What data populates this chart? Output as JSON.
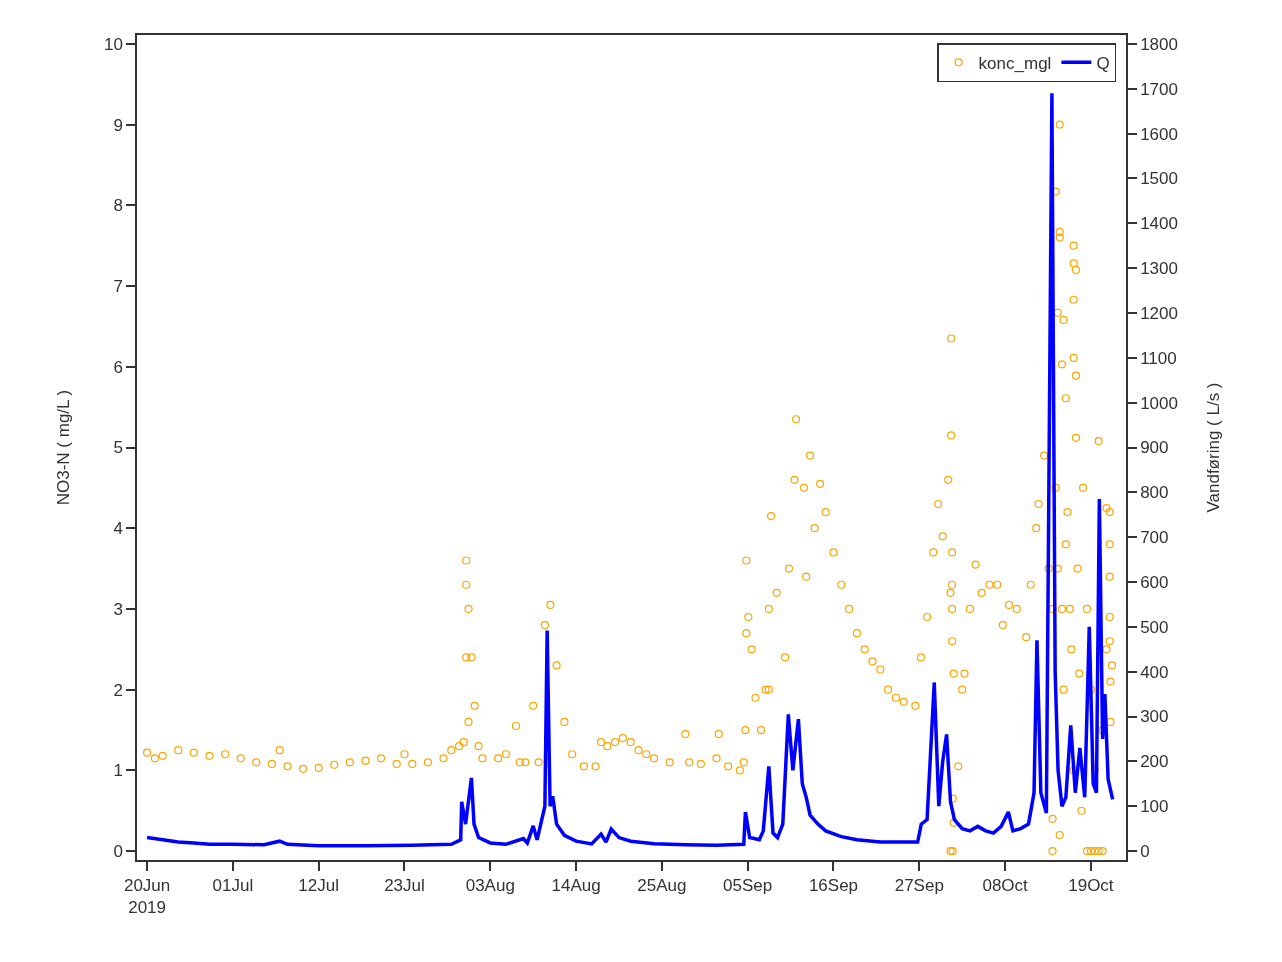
{
  "chart_data": {
    "type": "scatter",
    "xlabel": null,
    "ylabel": "NO3-N ( mg/L )",
    "y2label": "Vandføring ( L/s )",
    "xlim": [
      "2019-06-18T17:00",
      "2019-10-23T12:00"
    ],
    "xticks": [
      {
        "value": "2019-06-20",
        "label": "20Jun\n2019"
      },
      {
        "value": "2019-07-01",
        "label": "01Jul"
      },
      {
        "value": "2019-07-12",
        "label": "12Jul"
      },
      {
        "value": "2019-07-23",
        "label": "23Jul"
      },
      {
        "value": "2019-08-03",
        "label": "03Aug"
      },
      {
        "value": "2019-08-14",
        "label": "14Aug"
      },
      {
        "value": "2019-08-25",
        "label": "25Aug"
      },
      {
        "value": "2019-09-05",
        "label": "05Sep"
      },
      {
        "value": "2019-09-16",
        "label": "16Sep"
      },
      {
        "value": "2019-09-27",
        "label": "27Sep"
      },
      {
        "value": "2019-10-08",
        "label": "08Oct"
      },
      {
        "value": "2019-10-19",
        "label": "19Oct"
      }
    ],
    "ylim": [
      -0.11,
      10.11
    ],
    "yticks": [
      0,
      1,
      2,
      3,
      4,
      5,
      6,
      7,
      8,
      9,
      10
    ],
    "y2lim": [
      -20,
      1820
    ],
    "y2ticks": [
      0,
      100,
      200,
      300,
      400,
      500,
      600,
      700,
      800,
      900,
      1000,
      1100,
      1200,
      1300,
      1400,
      1500,
      1600,
      1700,
      1800
    ],
    "legend": "top right",
    "series": [
      {
        "name": "konc_mgl",
        "marker": "circle",
        "color": "#ffa500",
        "x": [
          "2019-06-20T00:00",
          "2019-06-21T00:00",
          "2019-06-22T00:00",
          "2019-06-24T00:00",
          "2019-06-26T00:00",
          "2019-06-28T00:00",
          "2019-06-30T00:00",
          "2019-07-02T00:00",
          "2019-07-04T00:00",
          "2019-07-06T00:00",
          "2019-07-07T00:00",
          "2019-07-08T00:00",
          "2019-07-10T00:00",
          "2019-07-12T00:00",
          "2019-07-14T00:00",
          "2019-07-16T00:00",
          "2019-07-18T00:00",
          "2019-07-20T00:00",
          "2019-07-22T00:00",
          "2019-07-23T00:00",
          "2019-07-24T00:00",
          "2019-07-26T00:00",
          "2019-07-28T00:00",
          "2019-07-29T00:00",
          "2019-07-30T00:00",
          "2019-07-30T14:00",
          "2019-07-30T22:00",
          "2019-07-30T22:00",
          "2019-07-30T22:00",
          "2019-07-31T05:00",
          "2019-07-31T05:00",
          "2019-07-31T14:00",
          "2019-08-01T00:00",
          "2019-08-01T12:00",
          "2019-08-02T00:00",
          "2019-08-04T00:00",
          "2019-08-05T00:00",
          "2019-08-06T07:00",
          "2019-08-06T19:00",
          "2019-08-07T12:00",
          "2019-08-08T12:00",
          "2019-08-09T05:00",
          "2019-08-10T00:00",
          "2019-08-10T17:00",
          "2019-08-11T12:00",
          "2019-08-12T12:00",
          "2019-08-13T12:00",
          "2019-08-15T00:00",
          "2019-08-16T12:00",
          "2019-08-17T05:00",
          "2019-08-18T00:00",
          "2019-08-19T00:00",
          "2019-08-20T00:00",
          "2019-08-21T00:00",
          "2019-08-22T00:00",
          "2019-08-23T00:00",
          "2019-08-24T00:00",
          "2019-08-26T00:00",
          "2019-08-28T00:00",
          "2019-08-28T12:00",
          "2019-08-30T00:00",
          "2019-09-01T00:00",
          "2019-09-01T07:00",
          "2019-09-02T12:00",
          "2019-09-04T00:00",
          "2019-09-04T12:00",
          "2019-09-04T17:00",
          "2019-09-04T20:00",
          "2019-09-04T20:00",
          "2019-09-05T02:00",
          "2019-09-05T12:00",
          "2019-09-06T00:00",
          "2019-09-06T17:00",
          "2019-09-07T07:00",
          "2019-09-07T17:00",
          "2019-09-07T17:00",
          "2019-09-08T00:00",
          "2019-09-08T17:00",
          "2019-09-09T19:00",
          "2019-09-10T07:00",
          "2019-09-11T00:00",
          "2019-09-11T05:00",
          "2019-09-12T05:00",
          "2019-09-12T12:00",
          "2019-09-13T00:00",
          "2019-09-13T14:00",
          "2019-09-14T07:00",
          "2019-09-15T00:00",
          "2019-09-16T00:00",
          "2019-09-17T00:00",
          "2019-09-18T00:00",
          "2019-09-19T00:00",
          "2019-09-20T00:00",
          "2019-09-21T00:00",
          "2019-09-22T00:00",
          "2019-09-23T00:00",
          "2019-09-24T00:00",
          "2019-09-25T00:00",
          "2019-09-26T12:00",
          "2019-09-27T05:00",
          "2019-09-28T00:00",
          "2019-09-28T19:00",
          "2019-09-29T10:00",
          "2019-09-30T00:00",
          "2019-09-30T17:00",
          "2019-10-01T00:00",
          "2019-10-01T02:00",
          "2019-10-01T02:00",
          "2019-10-01T00:00",
          "2019-10-01T05:00",
          "2019-10-01T05:00",
          "2019-10-01T05:00",
          "2019-10-01T05:00",
          "2019-10-01T07:00",
          "2019-10-01T07:00",
          "2019-10-01T10:00",
          "2019-10-01T10:00",
          "2019-10-02T00:00",
          "2019-10-02T12:00",
          "2019-10-02T19:00",
          "2019-10-03T12:00",
          "2019-10-04T05:00",
          "2019-10-05T00:00",
          "2019-10-06T00:00",
          "2019-10-07T00:00",
          "2019-10-07T17:00",
          "2019-10-08T12:00",
          "2019-10-09T12:00",
          "2019-10-10T17:00",
          "2019-10-11T07:00",
          "2019-10-12T00:00",
          "2019-10-12T07:00",
          "2019-10-13T00:00",
          "2019-10-13T14:00",
          "2019-10-14T02:00",
          "2019-10-14T02:00",
          "2019-10-14T02:00",
          "2019-10-14T12:00",
          "2019-10-14T12:00",
          "2019-10-14T18:00",
          "2019-10-14T18:00",
          "2019-10-15T00:00",
          "2019-10-15T00:00",
          "2019-10-15T00:00",
          "2019-10-15T00:00",
          "2019-10-15T07:00",
          "2019-10-15T07:00",
          "2019-10-15T12:00",
          "2019-10-15T12:00",
          "2019-10-15T19:00",
          "2019-10-15T19:00",
          "2019-10-16T00:00",
          "2019-10-16T07:00",
          "2019-10-16T12:00",
          "2019-10-16T19:00",
          "2019-10-16T19:00",
          "2019-10-16T19:00",
          "2019-10-16T19:00",
          "2019-10-16T19:00",
          "2019-10-17T02:00",
          "2019-10-17T02:00",
          "2019-10-17T02:00",
          "2019-10-17T07:00",
          "2019-10-17T12:00",
          "2019-10-17T19:00",
          "2019-10-18T00:00",
          "2019-10-18T12:00",
          "2019-10-18T12:00",
          "2019-10-19T00:00",
          "2019-10-19T00:00",
          "2019-10-19T12:00",
          "2019-10-19T12:00",
          "2019-10-20T00:00",
          "2019-10-20T00:00",
          "2019-10-20T12:00",
          "2019-10-20T12:00",
          "2019-10-21T00:00",
          "2019-10-21T00:00",
          "2019-10-21T10:00",
          "2019-10-21T10:00",
          "2019-10-21T10:00",
          "2019-10-21T10:00",
          "2019-10-21T10:00",
          "2019-10-21T12:00",
          "2019-10-21T12:00",
          "2019-10-21T17:00"
        ],
        "values": [
          1.22,
          1.15,
          1.18,
          1.25,
          1.22,
          1.18,
          1.2,
          1.15,
          1.1,
          1.08,
          1.25,
          1.05,
          1.02,
          1.03,
          1.07,
          1.1,
          1.12,
          1.15,
          1.08,
          1.2,
          1.08,
          1.1,
          1.15,
          1.25,
          1.3,
          1.35,
          3.6,
          3.3,
          2.4,
          3.0,
          1.6,
          2.4,
          1.8,
          1.3,
          1.15,
          1.15,
          1.2,
          1.55,
          1.1,
          1.1,
          1.8,
          1.1,
          2.8,
          3.05,
          2.3,
          1.6,
          1.2,
          1.05,
          1.05,
          1.35,
          1.3,
          1.35,
          1.4,
          1.35,
          1.25,
          1.2,
          1.15,
          1.1,
          1.45,
          1.1,
          1.08,
          1.15,
          1.45,
          1.05,
          1.0,
          1.1,
          1.5,
          3.6,
          2.7,
          2.9,
          2.5,
          1.9,
          1.5,
          2.0,
          3.0,
          2.0,
          4.15,
          3.2,
          2.4,
          3.5,
          4.6,
          5.35,
          4.5,
          3.4,
          4.9,
          4.0,
          4.55,
          4.2,
          3.7,
          3.3,
          3.0,
          2.7,
          2.5,
          2.35,
          2.25,
          2.0,
          1.9,
          1.85,
          1.8,
          2.4,
          2.9,
          3.7,
          4.3,
          3.9,
          4.6,
          3.2,
          6.35,
          5.15,
          0.0,
          3.7,
          3.3,
          3.0,
          2.6,
          0.0,
          0.65,
          2.2,
          0.35,
          1.05,
          2.0,
          2.2,
          3.0,
          3.55,
          3.2,
          3.3,
          3.3,
          2.8,
          3.05,
          3.0,
          2.65,
          3.3,
          4.0,
          4.3,
          4.9,
          3.5,
          0.4,
          0.0,
          3.0,
          8.17,
          4.5,
          6.67,
          3.5,
          9.0,
          7.67,
          7.6,
          0.2,
          6.03,
          3.0,
          6.58,
          2.0,
          5.61,
          3.8,
          4.2,
          3.0,
          2.5,
          7.5,
          7.28,
          6.83,
          6.11,
          1.0,
          7.2,
          5.89,
          5.12,
          3.5,
          2.2,
          0.5,
          4.5,
          3.0,
          0.0,
          2.0,
          0.0,
          1.0,
          0.0,
          5.08,
          0.0,
          1.5,
          0.0,
          2.5,
          4.25,
          4.2,
          3.8,
          3.4,
          2.9,
          2.6,
          1.6,
          2.1,
          2.3
        ]
      },
      {
        "name": "Q",
        "type": "line",
        "axis": "y2",
        "color": "#0000ff",
        "x": [
          "2019-06-20T00:00",
          "2019-06-22T00:00",
          "2019-06-24T00:00",
          "2019-06-26T00:00",
          "2019-06-28T00:00",
          "2019-07-01T00:00",
          "2019-07-05T00:00",
          "2019-07-07T00:00",
          "2019-07-08T00:00",
          "2019-07-12T00:00",
          "2019-07-18T00:00",
          "2019-07-24T00:00",
          "2019-07-29T00:00",
          "2019-07-30T05:00",
          "2019-07-30T08:00",
          "2019-07-30T20:00",
          "2019-07-31T14:00",
          "2019-07-31T22:00",
          "2019-08-01T12:00",
          "2019-08-03T00:00",
          "2019-08-05T00:00",
          "2019-08-07T06:00",
          "2019-08-07T18:00",
          "2019-08-08T12:00",
          "2019-08-09T00:00",
          "2019-08-10T00:00",
          "2019-08-10T07:00",
          "2019-08-10T16:00",
          "2019-08-11T00:00",
          "2019-08-11T12:00",
          "2019-08-12T12:00",
          "2019-08-14T00:00",
          "2019-08-16T00:00",
          "2019-08-17T05:00",
          "2019-08-17T20:00",
          "2019-08-18T12:00",
          "2019-08-19T12:00",
          "2019-08-21T00:00",
          "2019-08-24T00:00",
          "2019-08-28T00:00",
          "2019-09-01T00:00",
          "2019-09-04T12:00",
          "2019-09-04T17:00",
          "2019-09-05T06:00",
          "2019-09-06T12:00",
          "2019-09-07T00:00",
          "2019-09-07T17:00",
          "2019-09-08T06:00",
          "2019-09-08T20:00",
          "2019-09-09T12:00",
          "2019-09-10T05:00",
          "2019-09-10T19:00",
          "2019-09-11T12:00",
          "2019-09-12T00:00",
          "2019-09-12T12:00",
          "2019-09-13T00:00",
          "2019-09-14T00:00",
          "2019-09-15T00:00",
          "2019-09-17T00:00",
          "2019-09-19T00:00",
          "2019-09-22T00:00",
          "2019-09-26T19:00",
          "2019-09-27T06:00",
          "2019-09-28T00:00",
          "2019-09-28T22:00",
          "2019-09-29T12:00",
          "2019-09-30T00:00",
          "2019-09-30T12:00",
          "2019-10-01T00:00",
          "2019-10-01T12:00",
          "2019-10-02T12:00",
          "2019-10-03T12:00",
          "2019-10-04T12:00",
          "2019-10-05T12:00",
          "2019-10-06T12:00",
          "2019-10-07T12:00",
          "2019-10-08T10:00",
          "2019-10-09T00:00",
          "2019-10-10T00:00",
          "2019-10-11T00:00",
          "2019-10-11T17:00",
          "2019-10-12T02:00",
          "2019-10-12T14:00",
          "2019-10-13T07:00",
          "2019-10-14T00:00",
          "2019-10-14T10:00",
          "2019-10-14T19:00",
          "2019-10-15T07:00",
          "2019-10-15T19:00",
          "2019-10-16T10:00",
          "2019-10-17T00:00",
          "2019-10-17T14:00",
          "2019-10-18T05:00",
          "2019-10-18T19:00",
          "2019-10-19T07:00",
          "2019-10-19T17:00",
          "2019-10-20T02:00",
          "2019-10-20T12:00",
          "2019-10-20T19:00",
          "2019-10-21T05:00",
          "2019-10-21T19:00"
        ],
        "values": [
          30,
          25,
          20,
          18,
          15,
          15,
          14,
          22,
          15,
          12,
          12,
          13,
          15,
          25,
          110,
          60,
          163,
          60,
          30,
          18,
          15,
          28,
          18,
          56,
          25,
          100,
          492,
          100,
          122,
          60,
          35,
          22,
          16,
          38,
          20,
          49,
          30,
          22,
          16,
          14,
          13,
          15,
          87,
          30,
          25,
          45,
          189,
          40,
          30,
          60,
          305,
          180,
          294,
          150,
          120,
          80,
          60,
          45,
          32,
          25,
          20,
          20,
          60,
          70,
          376,
          100,
          200,
          260,
          110,
          70,
          50,
          45,
          55,
          45,
          40,
          55,
          87,
          45,
          50,
          60,
          130,
          470,
          130,
          85,
          1690,
          400,
          180,
          100,
          120,
          280,
          130,
          230,
          120,
          500,
          150,
          130,
          785,
          250,
          350,
          160,
          115
        ]
      }
    ]
  }
}
